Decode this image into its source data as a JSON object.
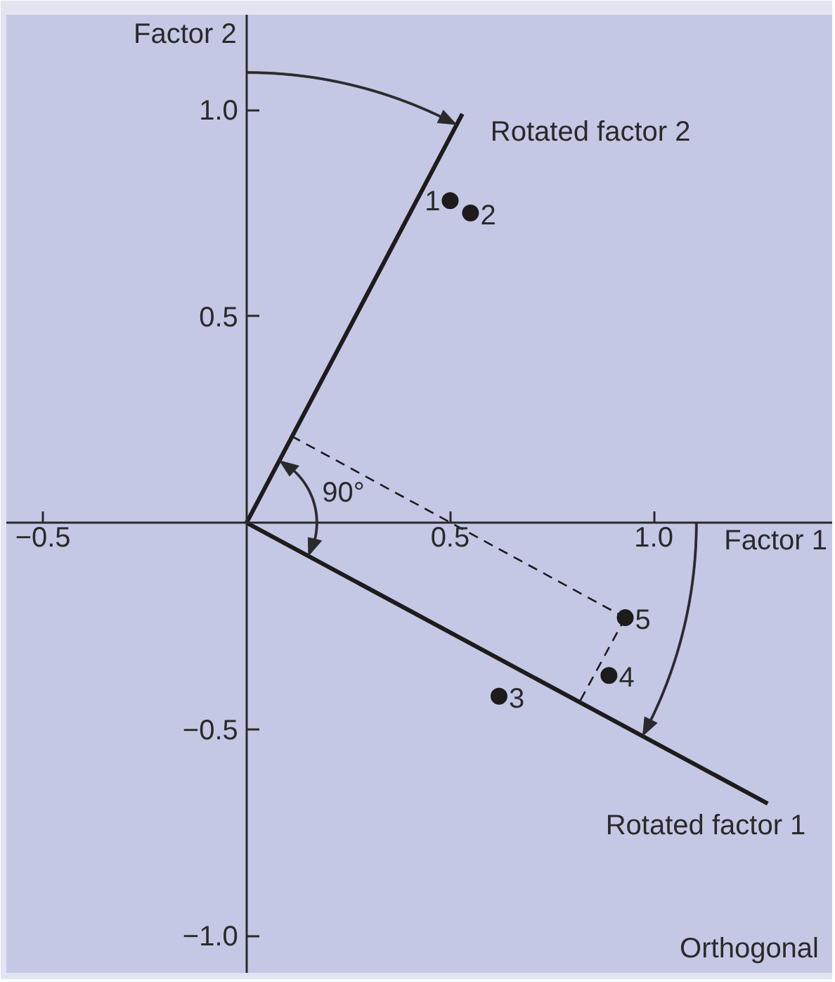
{
  "chart_data": {
    "type": "scatter",
    "xlabel": "Factor 1",
    "ylabel": "Factor 2",
    "xlim": [
      -0.59,
      1.44
    ],
    "ylim": [
      -1.09,
      1.23
    ],
    "xticks": [
      {
        "value": -0.5,
        "label": "−0.5"
      },
      {
        "value": 0.5,
        "label": "0.5"
      },
      {
        "value": 1,
        "label": "1.0"
      }
    ],
    "yticks": [
      {
        "value": -1,
        "label": "−1.0"
      },
      {
        "value": -0.5,
        "label": "−0.5"
      },
      {
        "value": 0.5,
        "label": "0.5"
      },
      {
        "value": 1,
        "label": "1.0"
      }
    ],
    "grid": false,
    "series": [
      {
        "color": "#1e1b1c",
        "marker": "circle",
        "x": [
          0.5,
          0.55,
          0.62,
          0.89,
          0.93
        ],
        "values": [
          0.78,
          0.75,
          -0.42,
          -0.37,
          -0.23
        ]
      },
      {
        "type": "line",
        "name": "Rotated factor 2",
        "color": "#1e1b1c",
        "line_style": "solid",
        "x": [
          0,
          0.53
        ],
        "values": [
          0,
          0.99
        ]
      },
      {
        "type": "line",
        "name": "Rotated factor 1",
        "color": "#1e1b1c",
        "line_style": "solid",
        "x": [
          0,
          1.28
        ],
        "values": [
          0,
          -0.68
        ]
      },
      {
        "type": "line",
        "color": "#1e1b1c",
        "line_style": "dashed",
        "x": [
          0.11,
          0.93
        ],
        "values": [
          0.21,
          -0.23
        ]
      },
      {
        "type": "line",
        "color": "#1e1b1c",
        "line_style": "dashed",
        "x": [
          0.82,
          0.93
        ],
        "values": [
          -0.43,
          -0.23
        ]
      }
    ],
    "annotations": [
      {
        "text": "1",
        "x": 0.5,
        "y": 0.78
      },
      {
        "text": "2",
        "x": 0.55,
        "y": 0.75
      },
      {
        "text": "3",
        "x": 0.62,
        "y": -0.42
      },
      {
        "text": "4",
        "x": 0.89,
        "y": -0.37
      },
      {
        "text": "5",
        "x": 0.93,
        "y": -0.23
      },
      "90°",
      "Orthogonal"
    ]
  }
}
